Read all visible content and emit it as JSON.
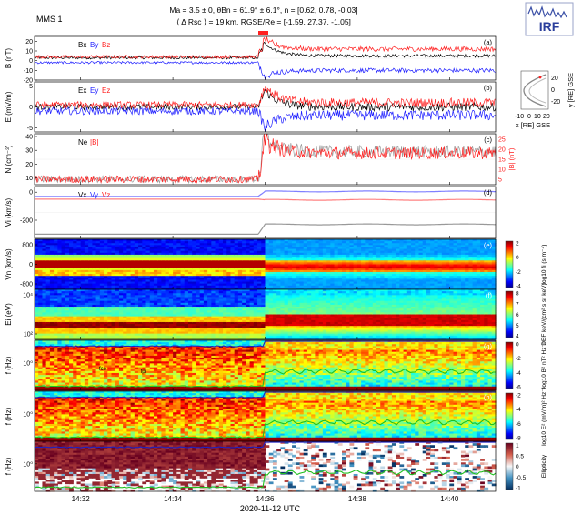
{
  "header": {
    "spacecraft": "MMS 1",
    "line1": "Ma = 3.5 ± 0,  θBn = 61.9° ± 6.1°, n = [0.62, 0.78, -0.03]",
    "line2": "⟨ Δ Rsc ⟩ = 19 km,  RGSE/Re = [-1.59, 27.37, -1.05]",
    "logo": "IRF"
  },
  "orbit_inset": {
    "ylabel": "y [RE] GSE",
    "xlabel": "x [RE] GSE",
    "yticks": [
      "20",
      "0",
      "-20"
    ],
    "xticks": [
      "-10",
      "0",
      "10",
      "20"
    ]
  },
  "colors": {
    "x": "#000000",
    "y": "#1f1fff",
    "z": "#ff2020",
    "total": "#999999"
  },
  "chart_data": {
    "type": "line",
    "xlabel": "2020-11-12 UTC",
    "x_range": [
      "14:31",
      "14:41"
    ],
    "x_ticks": [
      "14:32",
      "14:34",
      "14:36",
      "14:38",
      "14:40"
    ],
    "shock_time": "14:36",
    "panels": [
      {
        "id": "a",
        "tag": "(a)",
        "ylabel": "B (nT)",
        "ylim": [
          -20,
          25
        ],
        "yticks": [
          "20",
          "10",
          "0",
          "-10",
          "-20"
        ],
        "legend": [
          "Bx",
          "By",
          "Bz"
        ],
        "series": [
          {
            "name": "Bx",
            "upstream": 3,
            "downstream": 5,
            "overshoot": 18
          },
          {
            "name": "By",
            "upstream": -2,
            "downstream": -10,
            "overshoot": -16
          },
          {
            "name": "Bz",
            "upstream": 4,
            "downstream": 12,
            "overshoot": 22
          }
        ]
      },
      {
        "id": "b",
        "tag": "(b)",
        "ylabel": "E (mV/m)",
        "ylim": [
          -6,
          6
        ],
        "yticks": [
          "5",
          "0",
          "-5"
        ],
        "legend": [
          "Ex",
          "Ey",
          "Ez"
        ],
        "series": [
          {
            "name": "Ex",
            "upstream": 0,
            "downstream": 0,
            "overshoot": 4
          },
          {
            "name": "Ey",
            "upstream": -1,
            "downstream": -2,
            "overshoot": -5
          },
          {
            "name": "Ez",
            "upstream": 0.5,
            "downstream": 1,
            "overshoot": 5
          }
        ]
      },
      {
        "id": "c",
        "tag": "(c)",
        "ylabel": "N (cm⁻³)",
        "ylim": [
          5,
          42
        ],
        "yticks": [
          "40",
          "30",
          "20",
          "10"
        ],
        "right_ylabel": "|B| (nT)",
        "right_yticks": [
          "25",
          "20",
          "15",
          "10",
          "5"
        ],
        "legend": [
          "Ne",
          "|B|"
        ],
        "series": [
          {
            "name": "Ne",
            "upstream": 9,
            "downstream": 29,
            "overshoot": 40
          },
          {
            "name": "|B|",
            "upstream": 9,
            "downstream": 28,
            "overshoot": 38
          }
        ]
      },
      {
        "id": "d",
        "tag": "(d)",
        "ylabel": "Vi (km/s)",
        "ylim": [
          -330,
          40
        ],
        "yticks": [
          "0",
          "-200"
        ],
        "legend": [
          "Vx",
          "Vy",
          "Vz"
        ],
        "series": [
          {
            "name": "Vx",
            "upstream": -300,
            "downstream": -230
          },
          {
            "name": "Vy",
            "upstream": -30,
            "downstream": 5
          },
          {
            "name": "Vz",
            "upstream": -50,
            "downstream": -55
          }
        ]
      },
      {
        "id": "e",
        "tag": "(e)",
        "ylabel": "Vn (km/s)",
        "type": "heatmap",
        "yticks": [
          "800",
          "0",
          "-800"
        ],
        "cbar_label": "log10 fi (s m⁻⁴)",
        "cbar_ticks": [
          "2",
          "0",
          "-2",
          "-4"
        ]
      },
      {
        "id": "f",
        "tag": "(f)",
        "ylabel": "Ei (eV)",
        "type": "heatmap",
        "yticks": [
          "10⁴",
          "10²"
        ],
        "cbar_label": "DEF keV/(cm² s sr keV)",
        "cbar_ticks": [
          "8",
          "7",
          "6",
          "5",
          "4"
        ]
      },
      {
        "id": "g",
        "tag": "(g)",
        "ylabel": "f (Hz)",
        "type": "heatmap",
        "yticks": [
          "10⁰"
        ],
        "cbar_label": "log10 B² nT² Hz⁻¹",
        "cbar_ticks": [
          "0",
          "-2",
          "-4",
          "-6"
        ],
        "annotations": [
          "fce",
          "fpi"
        ]
      },
      {
        "id": "h",
        "tag": "(h)",
        "ylabel": "f (Hz)",
        "type": "heatmap",
        "yticks": [
          "10⁰"
        ],
        "cbar_label": "log10 E² (mV/m)² Hz⁻¹",
        "cbar_ticks": [
          "-2",
          "-4",
          "-6",
          "-8"
        ]
      },
      {
        "id": "i",
        "tag": "(i)",
        "ylabel": "f (Hz)",
        "type": "heatmap",
        "yticks": [
          "10⁰"
        ],
        "cbar_label": "Ellipticity",
        "cbar_ticks": [
          "1",
          "0.5",
          "0",
          "-0.5",
          "-1"
        ]
      }
    ]
  }
}
